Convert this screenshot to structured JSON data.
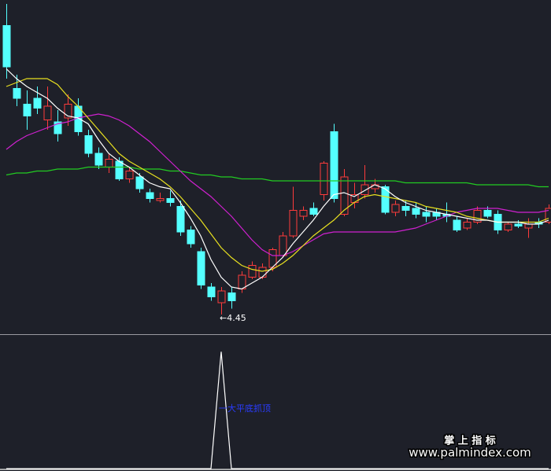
{
  "chart_data": [
    {
      "type": "candlestick",
      "ylim": [
        4.35,
        6.05
      ],
      "up_color": "#ff3b3b",
      "down_color": "#54ffff",
      "candles": {
        "open": [
          5.92,
          5.6,
          5.52,
          5.55,
          5.44,
          5.43,
          5.45,
          5.51,
          5.36,
          5.27,
          5.2,
          5.23,
          5.14,
          5.15,
          5.07,
          5.03,
          5.04,
          5.0,
          4.88,
          4.77,
          4.59,
          4.51,
          4.56,
          4.58,
          4.64,
          4.64,
          4.69,
          4.75,
          4.85,
          4.95,
          4.99,
          5.06,
          5.38,
          4.96,
          5.02,
          5.06,
          5.09,
          5.1,
          4.97,
          5.0,
          4.99,
          4.97,
          4.97,
          4.96,
          4.93,
          4.89,
          4.92,
          4.98,
          4.96,
          4.88,
          4.91,
          4.89,
          4.92,
          4.92
        ],
        "high": [
          6.03,
          5.67,
          5.59,
          5.61,
          5.61,
          5.49,
          5.57,
          5.55,
          5.39,
          5.3,
          5.27,
          5.25,
          5.2,
          5.17,
          5.09,
          5.07,
          5.08,
          5.03,
          4.9,
          4.79,
          4.61,
          4.59,
          4.59,
          4.67,
          4.72,
          4.71,
          4.79,
          4.87,
          5.1,
          5.0,
          5.02,
          5.23,
          5.42,
          5.19,
          5.12,
          5.21,
          5.14,
          5.11,
          5.03,
          5.03,
          5.02,
          5.0,
          4.99,
          5.02,
          4.95,
          4.94,
          5.0,
          5.0,
          4.98,
          4.92,
          4.93,
          4.94,
          4.94,
          5.01
        ],
        "low": [
          5.65,
          5.51,
          5.39,
          5.47,
          5.39,
          5.33,
          5.41,
          5.36,
          5.25,
          5.19,
          5.17,
          5.13,
          5.12,
          5.07,
          5.02,
          5.02,
          5.0,
          4.85,
          4.79,
          4.58,
          4.52,
          4.45,
          4.48,
          4.56,
          4.63,
          4.63,
          4.67,
          4.74,
          4.84,
          4.93,
          4.95,
          5.03,
          5.02,
          4.95,
          4.99,
          5.04,
          5.07,
          4.96,
          4.95,
          4.95,
          4.94,
          4.92,
          4.93,
          4.92,
          4.87,
          4.88,
          4.91,
          4.94,
          4.86,
          4.87,
          4.89,
          4.84,
          4.89,
          4.91
        ],
        "close": [
          5.71,
          5.55,
          5.46,
          5.5,
          5.51,
          5.37,
          5.52,
          5.38,
          5.27,
          5.21,
          5.24,
          5.14,
          5.18,
          5.09,
          5.04,
          5.04,
          5.02,
          4.87,
          4.81,
          4.6,
          4.54,
          4.57,
          4.52,
          4.65,
          4.7,
          4.69,
          4.78,
          4.85,
          4.98,
          4.98,
          4.96,
          5.22,
          5.04,
          5.15,
          5.06,
          5.11,
          5.11,
          4.97,
          5.01,
          4.98,
          4.96,
          4.95,
          4.95,
          4.95,
          4.88,
          4.92,
          4.98,
          4.95,
          4.88,
          4.91,
          4.9,
          4.91,
          4.91,
          4.99
        ]
      },
      "lines": [
        {
          "color": "#22cc22",
          "values": [
            5.16,
            5.17,
            5.17,
            5.18,
            5.18,
            5.19,
            5.19,
            5.19,
            5.2,
            5.2,
            5.2,
            5.2,
            5.2,
            5.19,
            5.19,
            5.19,
            5.18,
            5.18,
            5.17,
            5.16,
            5.16,
            5.15,
            5.15,
            5.14,
            5.14,
            5.14,
            5.13,
            5.13,
            5.13,
            5.13,
            5.13,
            5.13,
            5.13,
            5.13,
            5.13,
            5.13,
            5.13,
            5.13,
            5.13,
            5.12,
            5.12,
            5.12,
            5.12,
            5.12,
            5.12,
            5.12,
            5.11,
            5.11,
            5.11,
            5.11,
            5.11,
            5.11,
            5.1,
            5.1
          ]
        },
        {
          "color": "#d020d0",
          "values": [
            5.29,
            5.33,
            5.36,
            5.38,
            5.4,
            5.42,
            5.43,
            5.45,
            5.46,
            5.47,
            5.46,
            5.44,
            5.41,
            5.37,
            5.33,
            5.28,
            5.23,
            5.18,
            5.13,
            5.09,
            5.05,
            5.0,
            4.95,
            4.89,
            4.83,
            4.78,
            4.75,
            4.75,
            4.77,
            4.8,
            4.83,
            4.86,
            4.87,
            4.87,
            4.87,
            4.87,
            4.87,
            4.87,
            4.87,
            4.88,
            4.89,
            4.91,
            4.93,
            4.95,
            4.97,
            4.98,
            4.99,
            4.99,
            4.99,
            4.98,
            4.97,
            4.97,
            4.97,
            4.98
          ]
        },
        {
          "color": "#e8e020",
          "values": [
            5.61,
            5.63,
            5.65,
            5.65,
            5.65,
            5.62,
            5.56,
            5.51,
            5.45,
            5.39,
            5.33,
            5.27,
            5.23,
            5.2,
            5.17,
            5.14,
            5.1,
            5.05,
            4.99,
            4.93,
            4.86,
            4.79,
            4.74,
            4.7,
            4.68,
            4.67,
            4.68,
            4.71,
            4.75,
            4.8,
            4.85,
            4.89,
            4.93,
            4.98,
            5.02,
            5.05,
            5.06,
            5.05,
            5.04,
            5.03,
            5.02,
            5.0,
            4.99,
            4.98,
            4.97,
            4.95,
            4.94,
            4.93,
            4.92,
            4.92,
            4.92,
            4.92,
            4.92,
            4.94
          ]
        },
        {
          "color": "#ffffff",
          "values": [
            5.7,
            5.65,
            5.61,
            5.58,
            5.55,
            5.5,
            5.46,
            5.45,
            5.42,
            5.34,
            5.27,
            5.23,
            5.2,
            5.16,
            5.12,
            5.1,
            5.09,
            5.02,
            4.94,
            4.85,
            4.73,
            4.64,
            4.59,
            4.58,
            4.61,
            4.64,
            4.69,
            4.74,
            4.81,
            4.87,
            4.93,
            5.0,
            5.06,
            5.07,
            5.05,
            5.08,
            5.11,
            5.09,
            5.05,
            5.02,
            5.0,
            4.98,
            4.97,
            4.96,
            4.95,
            4.94,
            4.93,
            4.93,
            4.92,
            4.92,
            4.92,
            4.91,
            4.91,
            4.93
          ]
        }
      ],
      "annotations": [
        {
          "text": "←4.45"
        }
      ]
    },
    {
      "type": "line",
      "ylim": [
        0,
        1.15
      ],
      "series": [
        {
          "color": "#ffffff",
          "values": [
            0,
            0,
            0,
            0,
            0,
            0,
            0,
            0,
            0,
            0,
            0,
            0,
            0,
            0,
            0,
            0,
            0,
            0,
            0,
            0,
            0,
            1,
            0,
            0,
            0,
            0,
            0,
            0,
            0,
            0,
            0,
            0,
            0,
            0,
            0,
            0,
            0,
            0,
            0,
            0,
            0,
            0,
            0,
            0,
            0,
            0,
            0,
            0,
            0,
            0,
            0,
            0,
            0,
            0
          ]
        }
      ],
      "annotations": [
        {
          "text": "一大平底抓顶"
        }
      ]
    }
  ],
  "watermark": {
    "title": "掌 上 指 标",
    "url": "www.palmindex.com"
  }
}
